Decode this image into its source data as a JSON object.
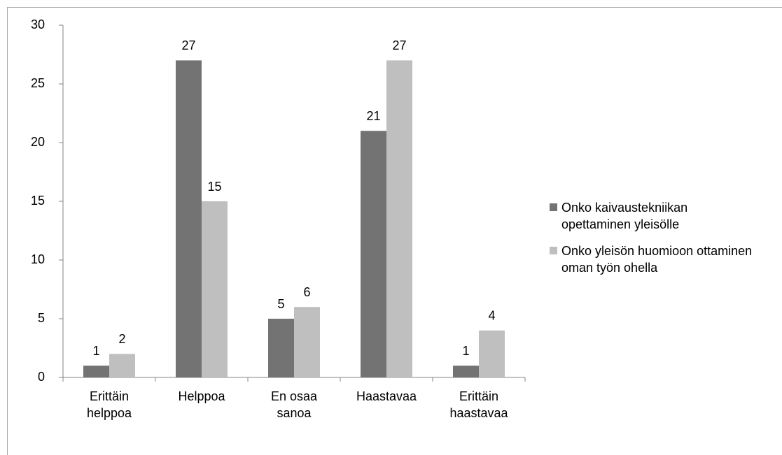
{
  "chart_data": {
    "type": "bar",
    "categories": [
      "Erittäin helppoa",
      "Helppoa",
      "En osaa sanoa",
      "Haastavaa",
      "Erittäin haastavaa"
    ],
    "series": [
      {
        "name": "Onko kaivaustekniikan opettaminen yleisölle",
        "color": "#737373",
        "values": [
          1,
          27,
          5,
          21,
          1
        ]
      },
      {
        "name": "Onko yleisön huomioon ottaminen oman työn ohella",
        "color": "#bfbfbf",
        "values": [
          2,
          15,
          6,
          27,
          4
        ]
      }
    ],
    "ylim": [
      0,
      30
    ],
    "yticks": [
      0,
      5,
      10,
      15,
      20,
      25,
      30
    ],
    "grid": false,
    "legend": "right"
  }
}
